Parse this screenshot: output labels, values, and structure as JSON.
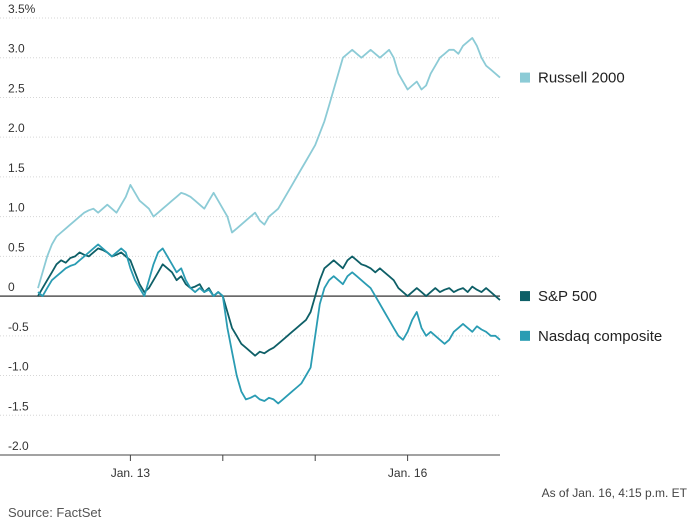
{
  "chart_data": {
    "type": "line",
    "ylim": [
      -2.0,
      3.5
    ],
    "yticks": [
      {
        "value": 3.5,
        "label": "3.5%"
      },
      {
        "value": 3.0,
        "label": "3.0"
      },
      {
        "value": 2.5,
        "label": "2.5"
      },
      {
        "value": 2.0,
        "label": "2.0"
      },
      {
        "value": 1.5,
        "label": "1.5"
      },
      {
        "value": 1.0,
        "label": "1.0"
      },
      {
        "value": 0.5,
        "label": "0.5"
      },
      {
        "value": 0,
        "label": "0"
      },
      {
        "value": -0.5,
        "label": "-0.5"
      },
      {
        "value": -1.0,
        "label": "-1.0"
      },
      {
        "value": -1.5,
        "label": "-1.5"
      },
      {
        "value": -2.0,
        "label": "-2.0"
      }
    ],
    "xlim": [
      0,
      5
    ],
    "day_boundaries": [
      1,
      2,
      3,
      4
    ],
    "xticks": [
      {
        "value": 1,
        "label": "Jan. 13"
      },
      {
        "value": 4,
        "label": "Jan. 16"
      }
    ],
    "series": [
      {
        "name": "Russell 2000",
        "color": "#8ccbd6",
        "width": 1.8,
        "x": [
          0.0,
          0.05,
          0.1,
          0.15,
          0.2,
          0.25,
          0.3,
          0.35,
          0.4,
          0.45,
          0.5,
          0.55,
          0.6,
          0.65,
          0.7,
          0.75,
          0.8,
          0.85,
          0.9,
          0.95,
          1.0,
          1.05,
          1.1,
          1.15,
          1.2,
          1.25,
          1.3,
          1.35,
          1.4,
          1.45,
          1.5,
          1.55,
          1.6,
          1.65,
          1.7,
          1.75,
          1.8,
          1.85,
          1.9,
          1.95,
          2.0,
          2.05,
          2.1,
          2.15,
          2.2,
          2.25,
          2.3,
          2.35,
          2.4,
          2.45,
          2.5,
          2.55,
          2.6,
          2.65,
          2.7,
          2.75,
          2.8,
          2.85,
          2.9,
          2.95,
          3.0,
          3.05,
          3.1,
          3.15,
          3.2,
          3.25,
          3.3,
          3.35,
          3.4,
          3.45,
          3.5,
          3.55,
          3.6,
          3.65,
          3.7,
          3.75,
          3.8,
          3.85,
          3.9,
          3.95,
          4.0,
          4.05,
          4.1,
          4.15,
          4.2,
          4.25,
          4.3,
          4.35,
          4.4,
          4.45,
          4.5,
          4.55,
          4.6,
          4.65,
          4.7,
          4.75,
          4.8,
          4.85,
          4.9,
          4.95,
          5.0
        ],
        "values": [
          0.1,
          0.3,
          0.5,
          0.65,
          0.75,
          0.8,
          0.85,
          0.9,
          0.95,
          1.0,
          1.05,
          1.08,
          1.1,
          1.05,
          1.1,
          1.15,
          1.1,
          1.05,
          1.15,
          1.25,
          1.4,
          1.3,
          1.2,
          1.15,
          1.1,
          1.0,
          1.05,
          1.1,
          1.15,
          1.2,
          1.25,
          1.3,
          1.28,
          1.25,
          1.2,
          1.15,
          1.1,
          1.2,
          1.3,
          1.2,
          1.1,
          1.0,
          0.8,
          0.85,
          0.9,
          0.95,
          1.0,
          1.05,
          0.95,
          0.9,
          1.0,
          1.05,
          1.1,
          1.2,
          1.3,
          1.4,
          1.5,
          1.6,
          1.7,
          1.8,
          1.9,
          2.05,
          2.2,
          2.4,
          2.6,
          2.8,
          3.0,
          3.05,
          3.1,
          3.05,
          3.0,
          3.05,
          3.1,
          3.05,
          3.0,
          3.05,
          3.1,
          3.0,
          2.8,
          2.7,
          2.6,
          2.65,
          2.7,
          2.6,
          2.65,
          2.8,
          2.9,
          3.0,
          3.05,
          3.1,
          3.1,
          3.05,
          3.15,
          3.2,
          3.25,
          3.15,
          3.0,
          2.9,
          2.85,
          2.8,
          2.75
        ]
      },
      {
        "name": "S&P 500",
        "color": "#0e5f67",
        "width": 1.8,
        "x": [
          0.0,
          0.05,
          0.1,
          0.15,
          0.2,
          0.25,
          0.3,
          0.35,
          0.4,
          0.45,
          0.5,
          0.55,
          0.6,
          0.65,
          0.7,
          0.75,
          0.8,
          0.85,
          0.9,
          0.95,
          1.0,
          1.05,
          1.1,
          1.15,
          1.2,
          1.25,
          1.3,
          1.35,
          1.4,
          1.45,
          1.5,
          1.55,
          1.6,
          1.65,
          1.7,
          1.75,
          1.8,
          1.85,
          1.9,
          1.95,
          2.0,
          2.05,
          2.1,
          2.15,
          2.2,
          2.25,
          2.3,
          2.35,
          2.4,
          2.45,
          2.5,
          2.55,
          2.6,
          2.65,
          2.7,
          2.75,
          2.8,
          2.85,
          2.9,
          2.95,
          3.0,
          3.05,
          3.1,
          3.15,
          3.2,
          3.25,
          3.3,
          3.35,
          3.4,
          3.45,
          3.5,
          3.55,
          3.6,
          3.65,
          3.7,
          3.75,
          3.8,
          3.85,
          3.9,
          3.95,
          4.0,
          4.05,
          4.1,
          4.15,
          4.2,
          4.25,
          4.3,
          4.35,
          4.4,
          4.45,
          4.5,
          4.55,
          4.6,
          4.65,
          4.7,
          4.75,
          4.8,
          4.85,
          4.9,
          4.95,
          5.0
        ],
        "values": [
          0.0,
          0.1,
          0.2,
          0.3,
          0.4,
          0.45,
          0.42,
          0.48,
          0.5,
          0.55,
          0.52,
          0.5,
          0.55,
          0.6,
          0.58,
          0.55,
          0.5,
          0.52,
          0.55,
          0.5,
          0.45,
          0.3,
          0.15,
          0.05,
          0.1,
          0.2,
          0.3,
          0.4,
          0.35,
          0.3,
          0.2,
          0.25,
          0.15,
          0.1,
          0.12,
          0.15,
          0.05,
          0.1,
          0.0,
          0.05,
          0.0,
          -0.2,
          -0.4,
          -0.5,
          -0.6,
          -0.65,
          -0.7,
          -0.75,
          -0.7,
          -0.72,
          -0.68,
          -0.65,
          -0.6,
          -0.55,
          -0.5,
          -0.45,
          -0.4,
          -0.35,
          -0.3,
          -0.2,
          0.0,
          0.2,
          0.35,
          0.4,
          0.45,
          0.4,
          0.35,
          0.45,
          0.5,
          0.45,
          0.4,
          0.38,
          0.35,
          0.3,
          0.35,
          0.3,
          0.25,
          0.2,
          0.1,
          0.05,
          0.0,
          0.05,
          0.1,
          0.05,
          0.0,
          0.05,
          0.1,
          0.05,
          0.08,
          0.1,
          0.05,
          0.08,
          0.1,
          0.05,
          0.12,
          0.08,
          0.05,
          0.1,
          0.05,
          0.0,
          -0.05
        ]
      },
      {
        "name": "Nasdaq composite",
        "color": "#2a9cb3",
        "width": 1.8,
        "x": [
          0.0,
          0.05,
          0.1,
          0.15,
          0.2,
          0.25,
          0.3,
          0.35,
          0.4,
          0.45,
          0.5,
          0.55,
          0.6,
          0.65,
          0.7,
          0.75,
          0.8,
          0.85,
          0.9,
          0.95,
          1.0,
          1.05,
          1.1,
          1.15,
          1.2,
          1.25,
          1.3,
          1.35,
          1.4,
          1.45,
          1.5,
          1.55,
          1.6,
          1.65,
          1.7,
          1.75,
          1.8,
          1.85,
          1.9,
          1.95,
          2.0,
          2.05,
          2.1,
          2.15,
          2.2,
          2.25,
          2.3,
          2.35,
          2.4,
          2.45,
          2.5,
          2.55,
          2.6,
          2.65,
          2.7,
          2.75,
          2.8,
          2.85,
          2.9,
          2.95,
          3.0,
          3.05,
          3.1,
          3.15,
          3.2,
          3.25,
          3.3,
          3.35,
          3.4,
          3.45,
          3.5,
          3.55,
          3.6,
          3.65,
          3.7,
          3.75,
          3.8,
          3.85,
          3.9,
          3.95,
          4.0,
          4.05,
          4.1,
          4.15,
          4.2,
          4.25,
          4.3,
          4.35,
          4.4,
          4.45,
          4.5,
          4.55,
          4.6,
          4.65,
          4.7,
          4.75,
          4.8,
          4.85,
          4.9,
          4.95,
          5.0
        ],
        "values": [
          0.05,
          0.0,
          0.1,
          0.2,
          0.25,
          0.3,
          0.35,
          0.38,
          0.4,
          0.45,
          0.5,
          0.55,
          0.6,
          0.65,
          0.6,
          0.55,
          0.5,
          0.55,
          0.6,
          0.55,
          0.35,
          0.2,
          0.1,
          0.0,
          0.2,
          0.4,
          0.55,
          0.6,
          0.5,
          0.4,
          0.3,
          0.35,
          0.2,
          0.1,
          0.05,
          0.1,
          0.05,
          0.08,
          0.0,
          0.05,
          0.0,
          -0.4,
          -0.7,
          -1.0,
          -1.2,
          -1.3,
          -1.28,
          -1.25,
          -1.3,
          -1.32,
          -1.28,
          -1.3,
          -1.35,
          -1.3,
          -1.25,
          -1.2,
          -1.15,
          -1.1,
          -1.0,
          -0.9,
          -0.5,
          -0.1,
          0.1,
          0.2,
          0.25,
          0.2,
          0.15,
          0.25,
          0.3,
          0.25,
          0.2,
          0.15,
          0.1,
          0.0,
          -0.1,
          -0.2,
          -0.3,
          -0.4,
          -0.5,
          -0.55,
          -0.45,
          -0.3,
          -0.2,
          -0.4,
          -0.5,
          -0.45,
          -0.5,
          -0.55,
          -0.6,
          -0.55,
          -0.45,
          -0.4,
          -0.35,
          -0.4,
          -0.45,
          -0.38,
          -0.42,
          -0.45,
          -0.5,
          -0.5,
          -0.55
        ]
      }
    ],
    "legend": [
      {
        "name": "Russell 2000",
        "color": "#8ccbd6",
        "anchor_value": 2.75
      },
      {
        "name": "S&P 500",
        "color": "#0e5f67",
        "anchor_value": 0.0
      },
      {
        "name": "Nasdaq composite",
        "color": "#2a9cb3",
        "anchor_value": -0.5
      }
    ],
    "annotations": {
      "as_of": "As of Jan. 16, 4:15 p.m. ET",
      "source": "Source: FactSet"
    }
  }
}
